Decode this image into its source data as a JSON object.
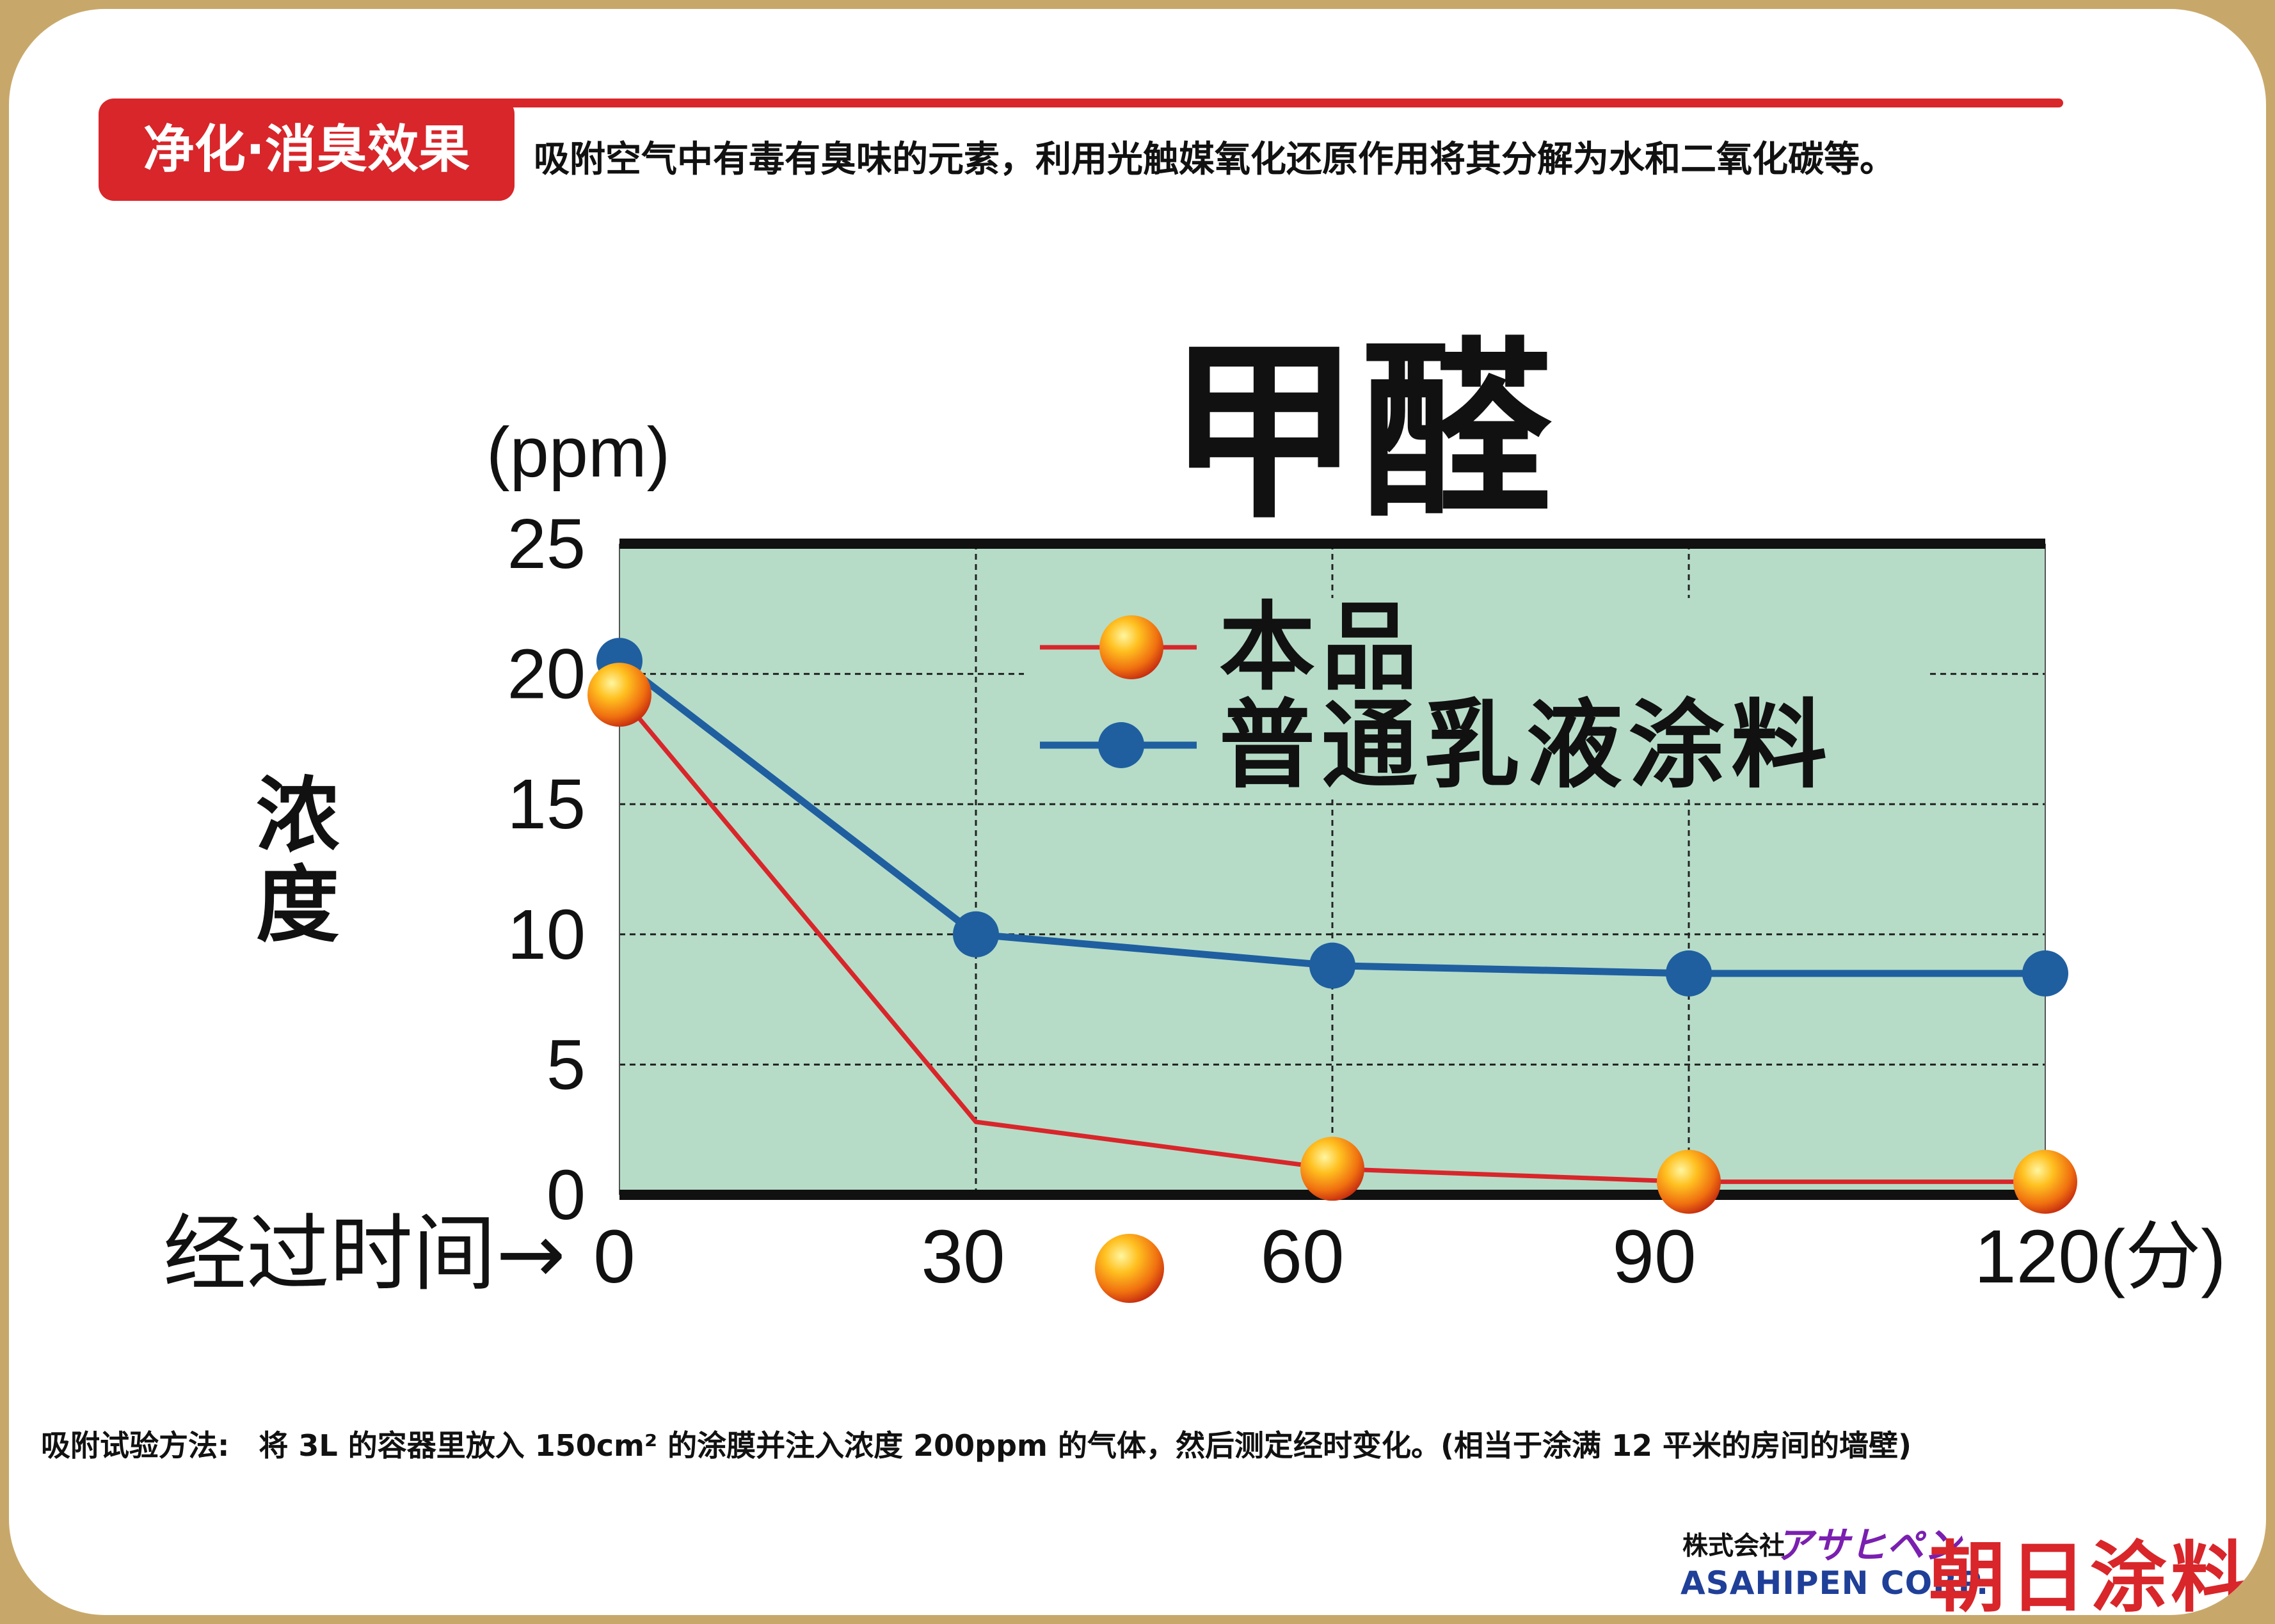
{
  "header": {
    "tag": "净化·消臭效果",
    "subtitle": "吸附空气中有毒有臭味的元素，利用光触媒氧化还原作用将其分解为水和二氧化碳等。"
  },
  "note": "吸附试验方法:　将 3L 的容器里放入 150cm² 的涂膜并注入浓度 200ppm 的气体，然后测定经时变化。(相当于涂满 12 平米的房间的墙壁)",
  "brand": {
    "small": "株式会社",
    "kana": "アサヒペン",
    "en": "ASAHIPEN CORP.",
    "cn": "朝日涂料"
  },
  "chart_data": {
    "type": "line",
    "title": "甲醛",
    "unit": "(ppm)",
    "ylabel": "浓度",
    "xlabel": "经过时间→",
    "x": [
      0,
      30,
      60,
      90,
      120
    ],
    "x_tick_labels": [
      "0",
      "30",
      "60",
      "90",
      "120(分)"
    ],
    "y_ticks": [
      0,
      5,
      10,
      15,
      20,
      25
    ],
    "ylim": [
      0,
      25
    ],
    "xlim": [
      0,
      120
    ],
    "grid": true,
    "legend_position": "top-center",
    "series": [
      {
        "name": "本品",
        "color": "#d8262a",
        "marker": "orange-ball",
        "values": [
          19.2,
          2.8,
          1.0,
          0.5,
          0.5
        ]
      },
      {
        "name": "普通乳液涂料",
        "color": "#1f5fa0",
        "marker": "blue-dot",
        "values": [
          20.5,
          10.0,
          8.8,
          8.5,
          8.5
        ]
      }
    ]
  }
}
